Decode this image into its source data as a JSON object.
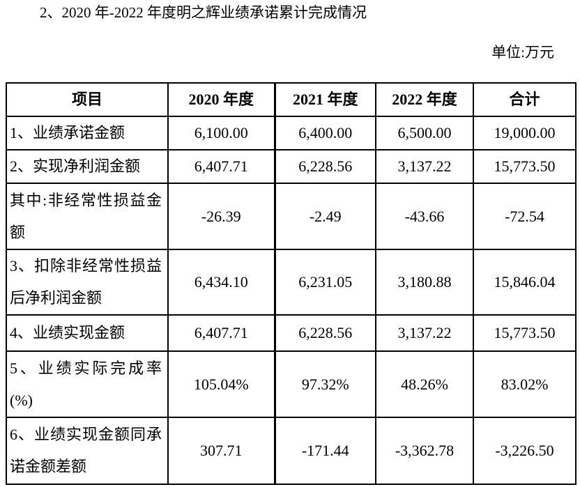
{
  "page": {
    "title": "2、2020 年-2022 年度明之辉业绩承诺累计完成情况",
    "unit_label": "单位:万元",
    "text_color": "#000000",
    "border_color": "#000000",
    "background_color": "#ffffff"
  },
  "table": {
    "columns": [
      "项目",
      "2020 年度",
      "2021 年度",
      "2022 年度",
      "合计"
    ],
    "rows": [
      {
        "label": "1、业绩承诺金额",
        "values": [
          "6,100.00",
          "6,400.00",
          "6,500.00",
          "19,000.00"
        ]
      },
      {
        "label": "2、实现净利润金额",
        "values": [
          "6,407.71",
          "6,228.56",
          "3,137.22",
          "15,773.50"
        ]
      },
      {
        "label": "其中:非经常性损益金额",
        "values": [
          "-26.39",
          "-2.49",
          "-43.66",
          "-72.54"
        ]
      },
      {
        "label": "3、扣除非经常性损益后净利润金额",
        "values": [
          "6,434.10",
          "6,231.05",
          "3,180.88",
          "15,846.04"
        ]
      },
      {
        "label": "4、业绩实现金额",
        "values": [
          "6,407.71",
          "6,228.56",
          "3,137.22",
          "15,773.50"
        ]
      },
      {
        "label": "5、业绩实际完成率(%)",
        "values": [
          "105.04%",
          "97.32%",
          "48.26%",
          "83.02%"
        ]
      },
      {
        "label": "6、业绩实现金额同承诺金额差额",
        "values": [
          "307.71",
          "-171.44",
          "-3,362.78",
          "-3,226.50"
        ]
      }
    ]
  }
}
